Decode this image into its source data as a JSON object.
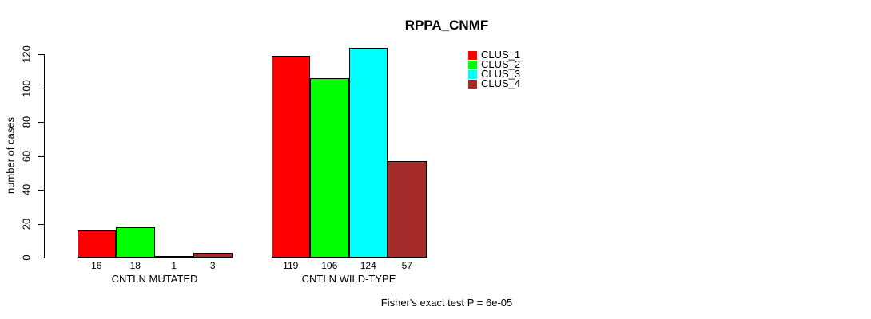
{
  "chart_data": {
    "type": "bar",
    "title": "RPPA_CNMF",
    "ylabel": "number of cases",
    "xlabel": "",
    "categories": [
      "CNTLN MUTATED",
      "CNTLN WILD-TYPE"
    ],
    "series": [
      {
        "name": "CLUS_1",
        "color": "#ff0000",
        "values": [
          16,
          119
        ]
      },
      {
        "name": "CLUS_2",
        "color": "#00ff00",
        "values": [
          18,
          106
        ]
      },
      {
        "name": "CLUS_3",
        "color": "#00ffff",
        "values": [
          1,
          124
        ]
      },
      {
        "name": "CLUS_4",
        "color": "#a52a2a",
        "values": [
          3,
          57
        ]
      }
    ],
    "ylim": [
      0,
      120
    ],
    "yticks": [
      0,
      20,
      40,
      60,
      80,
      100,
      120
    ],
    "grid": false,
    "legend_position": "top-right",
    "bar_value_labels_shown": true,
    "annotation": "Fisher's exact test P = 6e-05"
  }
}
